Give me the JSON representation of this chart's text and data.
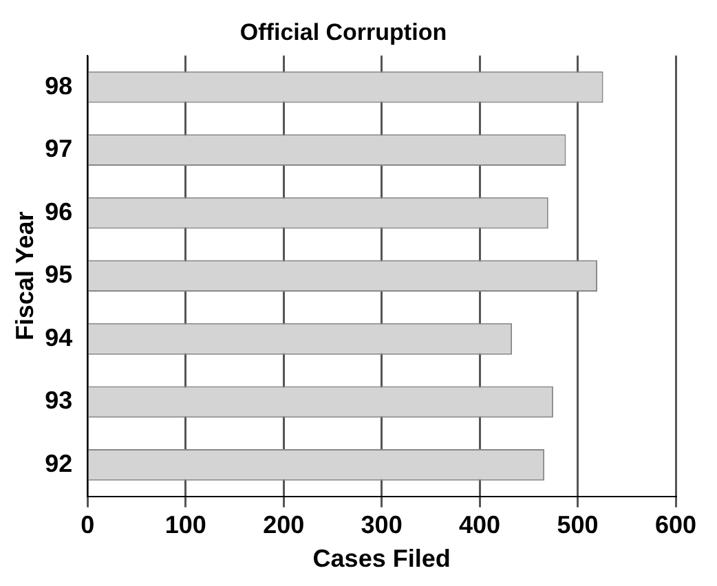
{
  "chart_data": {
    "type": "bar",
    "orientation": "horizontal",
    "title": "Official Corruption",
    "xlabel": "Cases Filed",
    "ylabel": "Fiscal Year",
    "categories": [
      "98",
      "97",
      "96",
      "95",
      "94",
      "93",
      "92"
    ],
    "values": [
      526,
      488,
      470,
      520,
      433,
      475,
      466
    ],
    "color": "#d4d4d4",
    "xlim": [
      0,
      600
    ],
    "xticks": [
      0,
      100,
      200,
      300,
      400,
      500,
      600
    ],
    "grid": "x",
    "legend": false
  }
}
